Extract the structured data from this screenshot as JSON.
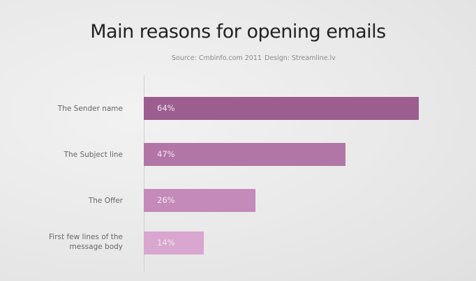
{
  "chart_data": {
    "type": "bar",
    "orientation": "horizontal",
    "title": "Main reasons for opening emails",
    "source": "Source: Cmbinfo.com 2011",
    "design": "Design: Streamline.lv",
    "categories": [
      "The Sender name",
      "The Subject line",
      "The Offer",
      "First few lines of the message body"
    ],
    "values": [
      64,
      47,
      26,
      14
    ],
    "value_labels": [
      "64%",
      "47%",
      "26%",
      "14%"
    ],
    "colors": [
      "#9b5e8f",
      "#b276a6",
      "#c48ab9",
      "#d8a6cf"
    ],
    "xlim": [
      0,
      64
    ],
    "grid": false
  }
}
